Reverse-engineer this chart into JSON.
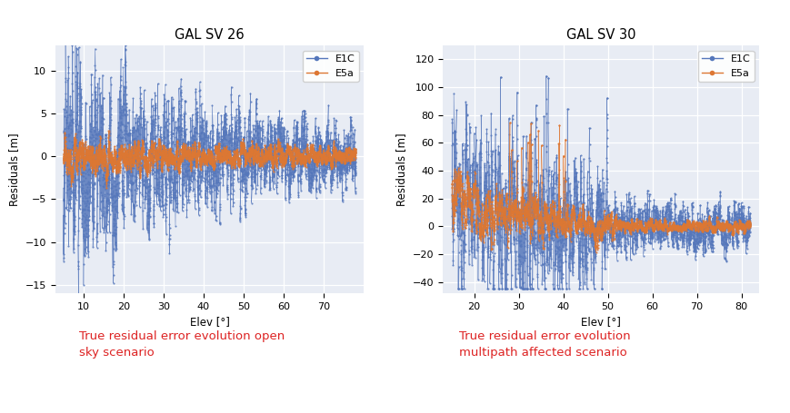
{
  "title1": "GAL SV 26",
  "title2": "GAL SV 30",
  "xlabel": "Elev [°]",
  "ylabel": "Residuals [m]",
  "colors": {
    "E1C": "#5577BB",
    "E5a": "#DD7733"
  },
  "plot1": {
    "xlim": [
      3,
      80
    ],
    "ylim": [
      -16,
      13
    ],
    "yticks": [
      -15,
      -10,
      -5,
      0,
      5,
      10
    ],
    "xticks": [
      10,
      20,
      30,
      40,
      50,
      60,
      70
    ]
  },
  "plot2": {
    "xlim": [
      13,
      84
    ],
    "ylim": [
      -48,
      130
    ],
    "yticks": [
      -40,
      -20,
      0,
      20,
      40,
      60,
      80,
      100,
      120
    ],
    "xticks": [
      20,
      30,
      40,
      50,
      60,
      70,
      80
    ]
  },
  "caption1": "True residual error evolution open\nsky scenario",
  "caption2": "True residual error evolution\nmultipath affected scenario",
  "caption_color": "#DD2222",
  "bg_color": "#E8ECF4",
  "fig_bg": "#FFFFFF",
  "seed": 42
}
